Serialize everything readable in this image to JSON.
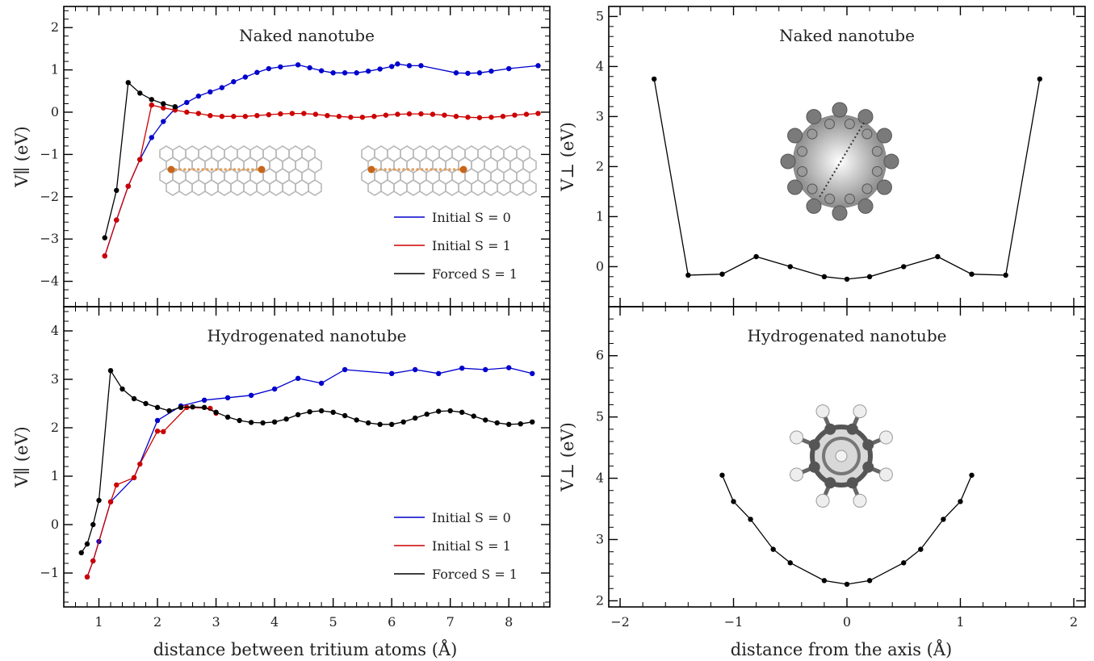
{
  "xlabel_left": "distance between tritium atoms  (Å)",
  "xlabel_right": "distance from the axis  (Å)",
  "ylabel_parallel": "V∥  (eV)",
  "ylabel_perp": "V⊥  (eV)",
  "colors": {
    "initial_s0": "#0000cc",
    "initial_s1": "#cc0000",
    "forced_s1": "#000000"
  },
  "chart_data": [
    {
      "type": "line",
      "title": "Naked nanotube",
      "ylabel": "V∥  (eV)",
      "xlim": [
        0.4,
        8.7
      ],
      "ylim": [
        -4.6,
        2.5
      ],
      "xticks": [
        1,
        2,
        3,
        4,
        5,
        6,
        7,
        8
      ],
      "yticks": [
        -4,
        -3,
        -2,
        -1,
        0,
        1,
        2
      ],
      "legend": "bottom-right",
      "series": [
        {
          "name": "Initial S = 0",
          "color": "#0000cc",
          "x": [
            1.1,
            1.3,
            1.5,
            1.7,
            1.9,
            2.1,
            2.3,
            2.5,
            2.7,
            2.9,
            3.1,
            3.3,
            3.5,
            3.7,
            3.9,
            4.1,
            4.4,
            4.6,
            4.8,
            5.0,
            5.2,
            5.4,
            5.6,
            5.8,
            6.0,
            6.1,
            6.3,
            6.5,
            7.1,
            7.3,
            7.5,
            7.7,
            8.0,
            8.5
          ],
          "y": [
            -3.4,
            -2.55,
            -1.75,
            -1.12,
            -0.6,
            -0.22,
            0.08,
            0.23,
            0.38,
            0.48,
            0.58,
            0.72,
            0.83,
            0.94,
            1.03,
            1.07,
            1.12,
            1.05,
            0.98,
            0.93,
            0.93,
            0.93,
            0.97,
            1.02,
            1.08,
            1.14,
            1.1,
            1.1,
            0.93,
            0.92,
            0.93,
            0.97,
            1.03,
            1.1
          ]
        },
        {
          "name": "Initial S = 1",
          "color": "#cc0000",
          "x": [
            1.1,
            1.3,
            1.5,
            1.7,
            1.9,
            2.1,
            2.3,
            2.5,
            2.7,
            2.9,
            3.1,
            3.3,
            3.5,
            3.7,
            3.9,
            4.1,
            4.3,
            4.5,
            4.7,
            4.9,
            5.1,
            5.3,
            5.5,
            5.7,
            5.9,
            6.1,
            6.3,
            6.5,
            6.7,
            6.9,
            7.1,
            7.3,
            7.5,
            7.7,
            7.9,
            8.1,
            8.3,
            8.5
          ],
          "y": [
            -3.4,
            -2.55,
            -1.75,
            -1.12,
            0.17,
            0.1,
            0.05,
            0.0,
            -0.03,
            -0.08,
            -0.1,
            -0.1,
            -0.1,
            -0.08,
            -0.06,
            -0.04,
            -0.03,
            -0.03,
            -0.05,
            -0.08,
            -0.1,
            -0.12,
            -0.12,
            -0.1,
            -0.07,
            -0.05,
            -0.04,
            -0.04,
            -0.05,
            -0.07,
            -0.1,
            -0.12,
            -0.13,
            -0.12,
            -0.1,
            -0.07,
            -0.05,
            -0.03
          ]
        },
        {
          "name": "Forced S = 1",
          "color": "#000000",
          "x": [
            1.1,
            1.3,
            1.5,
            1.7,
            1.9,
            2.1,
            2.3
          ],
          "y": [
            -2.97,
            -1.85,
            0.7,
            0.45,
            0.3,
            0.2,
            0.13
          ]
        }
      ]
    },
    {
      "type": "line",
      "title": "Hydrogenated nanotube",
      "ylabel": "V∥  (eV)",
      "xlim": [
        0.4,
        8.7
      ],
      "ylim": [
        -1.7,
        4.5
      ],
      "xticks": [
        1,
        2,
        3,
        4,
        5,
        6,
        7,
        8
      ],
      "yticks": [
        -1,
        0,
        1,
        2,
        3,
        4
      ],
      "xlabel": "distance between tritium atoms  (Å)",
      "legend": "bottom-right",
      "series": [
        {
          "name": "Initial S = 0",
          "color": "#0000cc",
          "x": [
            0.8,
            0.9,
            1.0,
            1.2,
            1.6,
            2.0,
            2.4,
            2.8,
            3.2,
            3.6,
            4.0,
            4.4,
            4.8,
            5.2,
            6.0,
            6.4,
            6.8,
            7.2,
            7.6,
            8.0,
            8.4
          ],
          "y": [
            -1.08,
            -0.75,
            -0.35,
            0.47,
            0.97,
            2.15,
            2.45,
            2.57,
            2.62,
            2.67,
            2.8,
            3.02,
            2.92,
            3.2,
            3.12,
            3.2,
            3.12,
            3.23,
            3.2,
            3.24,
            3.12
          ]
        },
        {
          "name": "Initial S = 1",
          "color": "#cc0000",
          "x": [
            0.8,
            0.9,
            1.2,
            1.3,
            1.6,
            1.7,
            2.0,
            2.1,
            2.5,
            2.9,
            3.0
          ],
          "y": [
            -1.08,
            -0.75,
            0.47,
            0.82,
            0.97,
            1.25,
            1.93,
            1.92,
            2.42,
            2.4,
            2.3
          ]
        },
        {
          "name": "Forced S = 1",
          "color": "#000000",
          "x": [
            0.7,
            0.8,
            0.9,
            1.0,
            1.2,
            1.4,
            1.6,
            1.8,
            2.0,
            2.2,
            2.4,
            2.6,
            2.8,
            3.0,
            3.2,
            3.4,
            3.6,
            3.8,
            4.0,
            4.2,
            4.4,
            4.6,
            4.8,
            5.0,
            5.2,
            5.4,
            5.6,
            5.8,
            6.0,
            6.2,
            6.4,
            6.6,
            6.8,
            7.0,
            7.2,
            7.4,
            7.6,
            7.8,
            8.0,
            8.2,
            8.4
          ],
          "y": [
            -0.58,
            -0.4,
            0.0,
            0.5,
            3.18,
            2.8,
            2.6,
            2.5,
            2.42,
            2.35,
            2.42,
            2.43,
            2.42,
            2.32,
            2.22,
            2.15,
            2.11,
            2.1,
            2.12,
            2.18,
            2.27,
            2.33,
            2.35,
            2.32,
            2.25,
            2.16,
            2.1,
            2.07,
            2.07,
            2.12,
            2.2,
            2.28,
            2.34,
            2.35,
            2.32,
            2.24,
            2.16,
            2.1,
            2.07,
            2.08,
            2.12
          ]
        }
      ]
    },
    {
      "type": "line",
      "title": "Naked nanotube",
      "ylabel": "V⊥  (eV)",
      "xlim": [
        -2.1,
        2.1
      ],
      "ylim": [
        -0.8,
        5.2
      ],
      "xticks": [
        -2,
        -1,
        0,
        1,
        2
      ],
      "yticks": [
        0,
        1,
        2,
        3,
        4,
        5
      ],
      "series": [
        {
          "color": "#000000",
          "x": [
            -1.7,
            -1.4,
            -1.1,
            -0.8,
            -0.5,
            -0.2,
            0.0,
            0.2,
            0.5,
            0.8,
            1.1,
            1.4,
            1.7
          ],
          "y": [
            3.75,
            -0.17,
            -0.15,
            0.2,
            0.0,
            -0.2,
            -0.25,
            -0.2,
            0.0,
            0.2,
            -0.15,
            -0.17,
            3.75
          ]
        }
      ]
    },
    {
      "type": "line",
      "title": "Hydrogenated nanotube",
      "ylabel": "V⊥  (eV)",
      "xlim": [
        -2.1,
        2.1
      ],
      "ylim": [
        1.9,
        6.8
      ],
      "xticks": [
        -2,
        -1,
        0,
        1,
        2
      ],
      "xtick_labels": [
        "−2",
        "−1",
        "0",
        "1",
        "2"
      ],
      "yticks": [
        2,
        3,
        4,
        5,
        6
      ],
      "xlabel": "distance from the axis  (Å)",
      "series": [
        {
          "color": "#000000",
          "x": [
            -1.1,
            -1.0,
            -0.85,
            -0.65,
            -0.5,
            -0.2,
            0.0,
            0.2,
            0.5,
            0.65,
            0.85,
            1.0,
            1.1
          ],
          "y": [
            4.05,
            3.62,
            3.33,
            2.84,
            2.62,
            2.33,
            2.27,
            2.33,
            2.62,
            2.84,
            3.33,
            3.62,
            4.05
          ]
        }
      ]
    }
  ]
}
